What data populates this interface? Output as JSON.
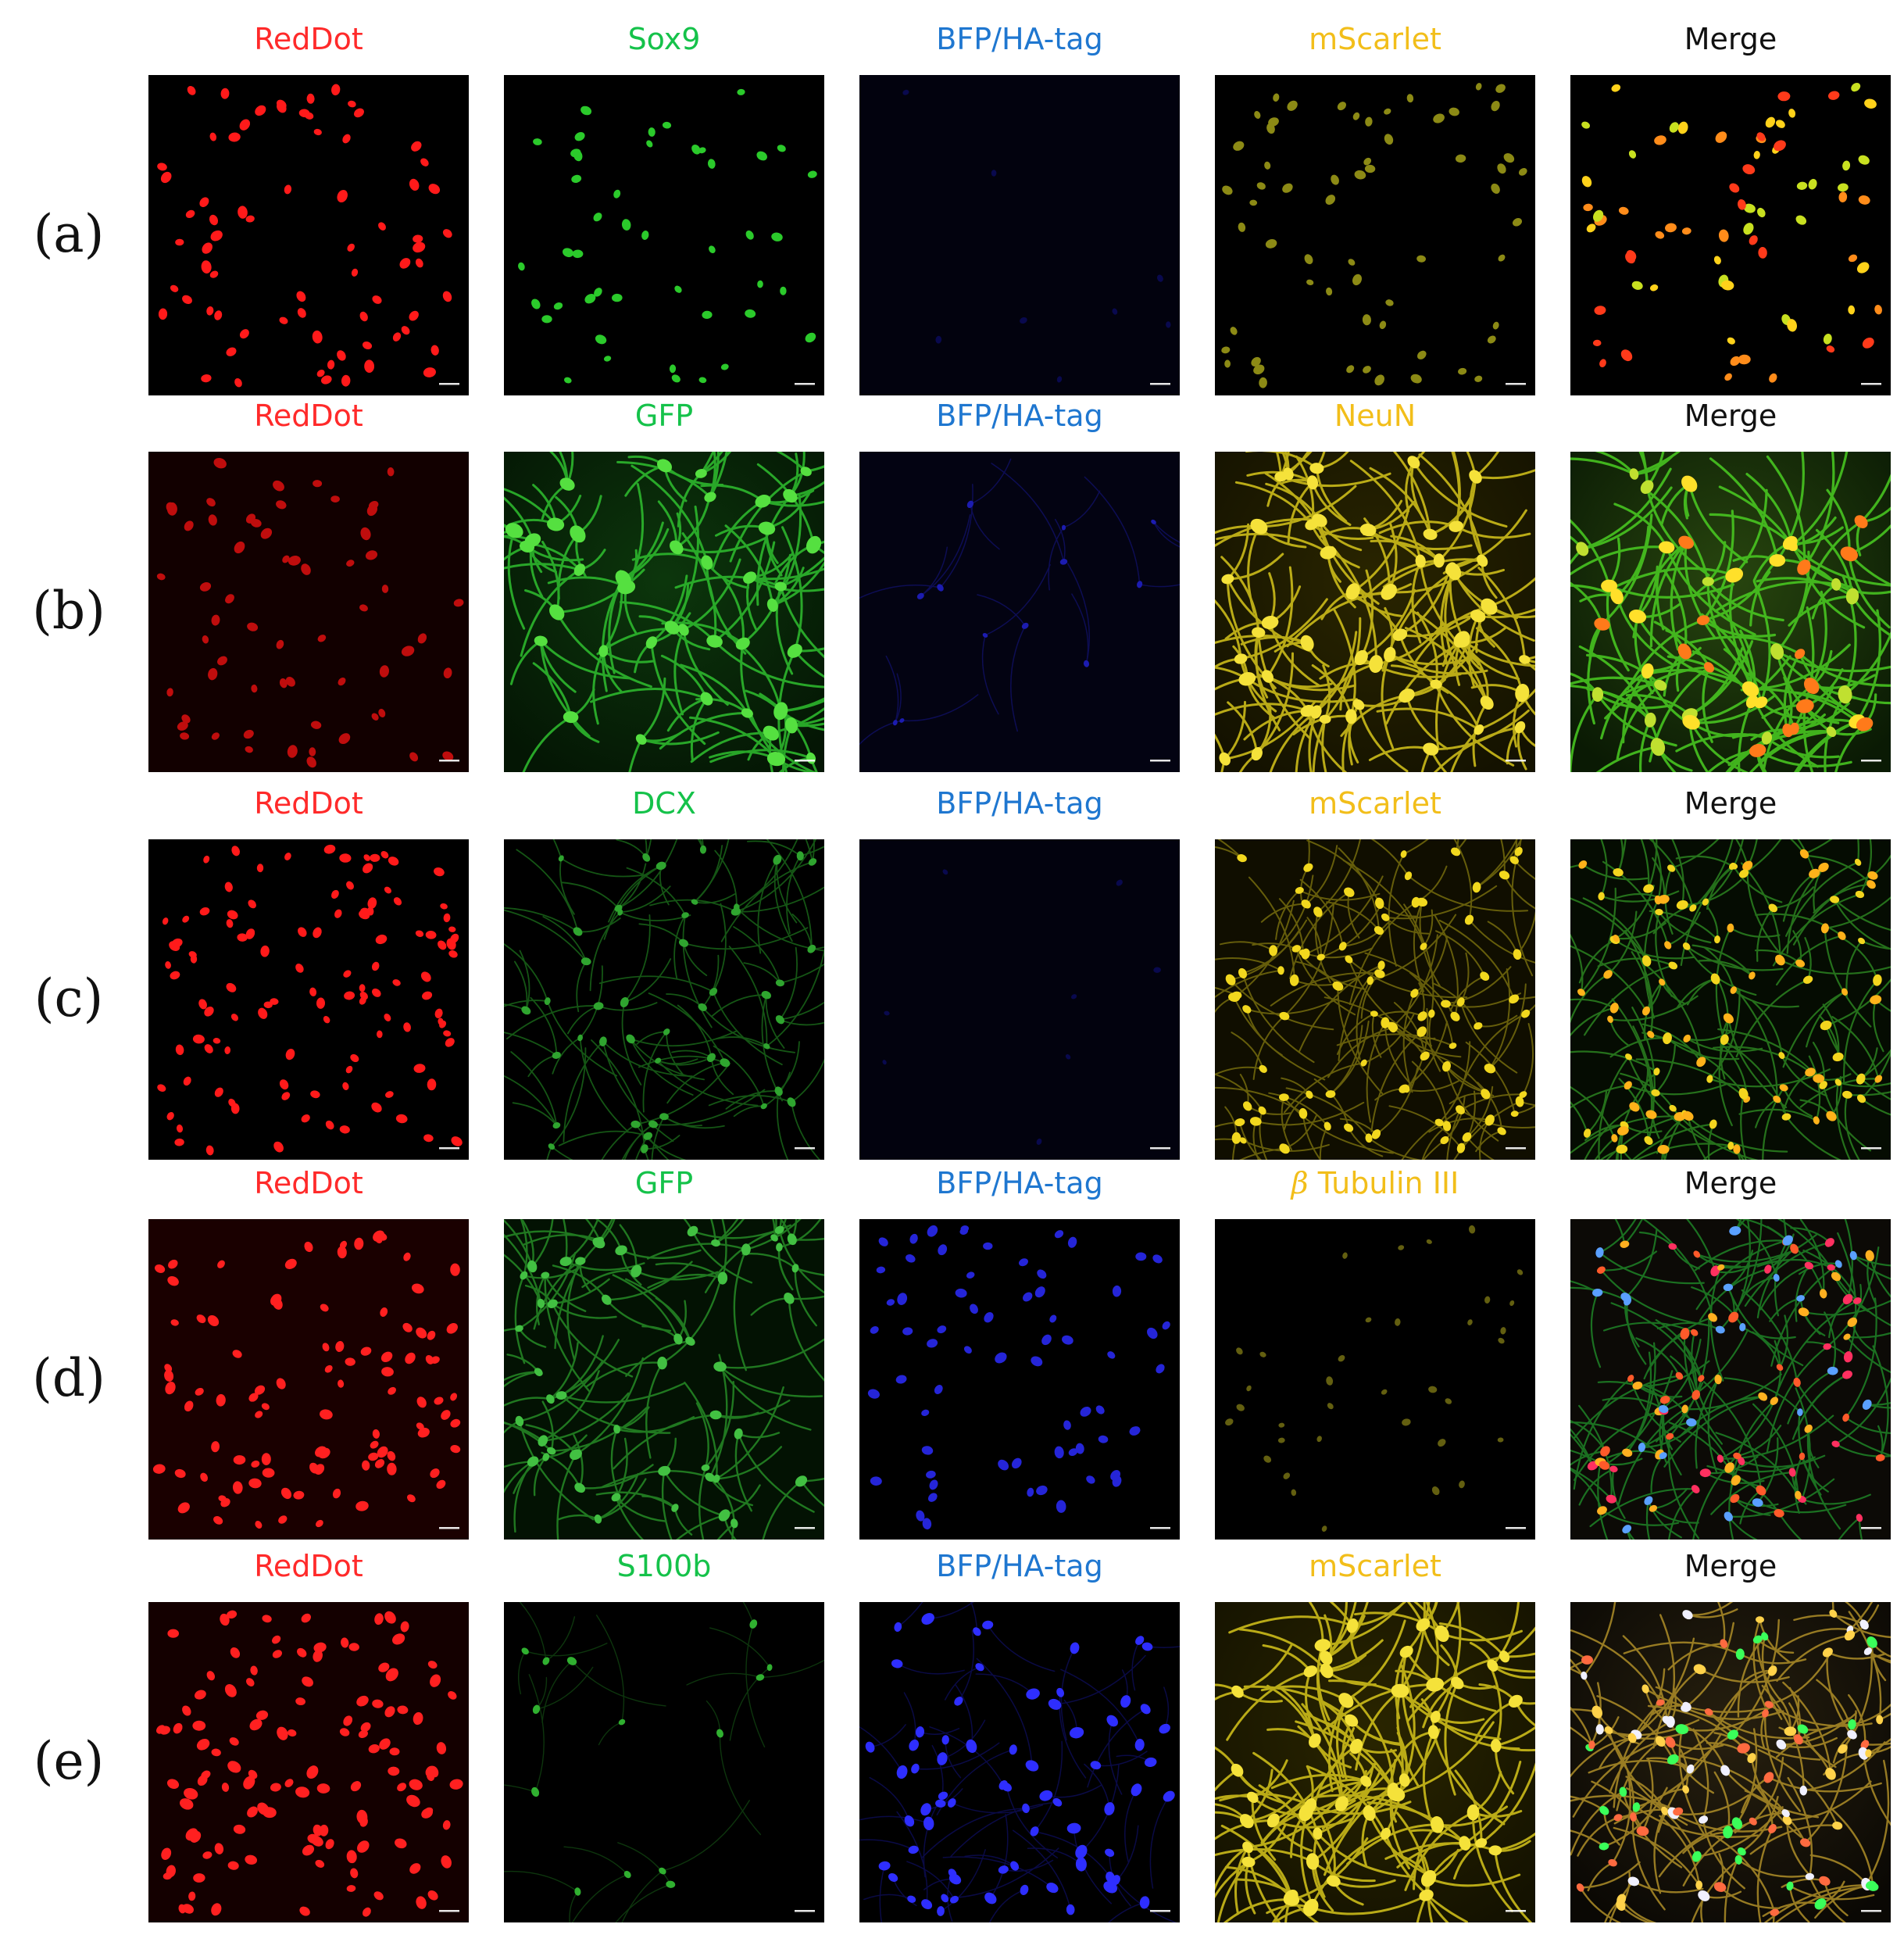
{
  "colors": {
    "red": "#ff2a2a",
    "green": "#15c24a",
    "blue": "#1f77d0",
    "yellow": "#f2be1a",
    "black": "#111111"
  },
  "rows": [
    {
      "label": "(a)",
      "style": "sparse",
      "channels": [
        {
          "title": "RedDot",
          "color": "red",
          "image": "red-nuclei"
        },
        {
          "title": "Sox9",
          "color": "green",
          "image": "green-nuclei-sparse"
        },
        {
          "title": "BFP/HA-tag",
          "color": "blue",
          "image": "blue-dim"
        },
        {
          "title": "mScarlet",
          "color": "yellow",
          "image": "yellow-nuclei-dim"
        },
        {
          "title": "Merge",
          "color": "black",
          "image": "merge-nuclei"
        }
      ]
    },
    {
      "label": "(b)",
      "style": "neurons-bright",
      "channels": [
        {
          "title": "RedDot",
          "color": "red",
          "image": "red-nuclei-dim"
        },
        {
          "title": "GFP",
          "color": "green",
          "image": "green-neurons-bright"
        },
        {
          "title": "BFP/HA-tag",
          "color": "blue",
          "image": "blue-faint-processes"
        },
        {
          "title": "NeuN",
          "color": "yellow",
          "image": "yellow-neurons-bright"
        },
        {
          "title": "Merge",
          "color": "black",
          "image": "merge-neurons"
        }
      ]
    },
    {
      "label": "(c)",
      "style": "neurons-dim",
      "channels": [
        {
          "title": "RedDot",
          "color": "red",
          "image": "red-nuclei-dense"
        },
        {
          "title": "DCX",
          "color": "green",
          "image": "green-neurons-dim"
        },
        {
          "title": "BFP/HA-tag",
          "color": "blue",
          "image": "blue-dim"
        },
        {
          "title": "mScarlet",
          "color": "yellow",
          "image": "yellow-neurons-dots"
        },
        {
          "title": "Merge",
          "color": "black",
          "image": "merge-neurons-dots"
        }
      ]
    },
    {
      "label": "(d)",
      "style": "neurons-medium",
      "channels": [
        {
          "title": "RedDot",
          "color": "red",
          "image": "red-nuclei-haze"
        },
        {
          "title": "GFP",
          "color": "green",
          "image": "green-neurons-medium"
        },
        {
          "title": "BFP/HA-tag",
          "color": "blue",
          "image": "blue-nuclei"
        },
        {
          "title": "Tubulin III",
          "prefix": "β",
          "color": "yellow",
          "image": "yellow-sparse-dim"
        },
        {
          "title": "Merge",
          "color": "black",
          "image": "merge-multicolor"
        }
      ]
    },
    {
      "label": "(e)",
      "style": "astro",
      "channels": [
        {
          "title": "RedDot",
          "color": "red",
          "image": "red-nuclei-bright"
        },
        {
          "title": "S100b",
          "color": "green",
          "image": "green-sparse"
        },
        {
          "title": "BFP/HA-tag",
          "color": "blue",
          "image": "blue-cells"
        },
        {
          "title": "mScarlet",
          "color": "yellow",
          "image": "yellow-neurons-bright"
        },
        {
          "title": "Merge",
          "color": "black",
          "image": "merge-warm"
        }
      ]
    }
  ]
}
